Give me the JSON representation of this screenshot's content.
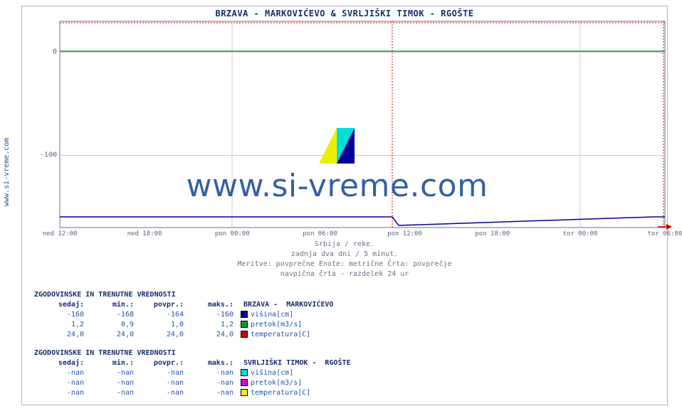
{
  "side_label": "www.si-vreme.com",
  "title": "BRZAVA -  MARKOVIĆEVO &  SVRLJIŠKI TIMOK -  RGOŠTE",
  "watermark_text": "www.si-vreme.com",
  "chart": {
    "type": "line",
    "background_color": "#ffffff",
    "border_color": "#b0b0c0",
    "dashed_border_color": "#dd0000",
    "grid_color": "#cccccc",
    "ylim": [
      -170,
      30
    ],
    "ytick_values": [
      0,
      -100
    ],
    "ytick_labels": [
      "0",
      "-100"
    ],
    "xtick_positions": [
      0,
      0.14,
      0.285,
      0.43,
      0.57,
      0.715,
      0.86,
      1.0
    ],
    "xtick_labels": [
      "ned 12:00",
      "ned 18:00",
      "pon 00:00",
      "pon 06:00",
      "pon 12:00",
      "pon 18:00",
      "tor 00:00",
      "tor 06:00"
    ],
    "divider_24h_x": 0.55,
    "series": [
      {
        "name": "visina_brzava",
        "color": "#000099",
        "data": [
          [
            0,
            -160
          ],
          [
            0.55,
            -160
          ],
          [
            0.56,
            -168
          ],
          [
            0.98,
            -160
          ],
          [
            1.0,
            -160
          ]
        ]
      },
      {
        "name": "pretok_brzava",
        "color": "#009933",
        "data": [
          [
            0,
            1
          ],
          [
            1.0,
            1
          ]
        ]
      },
      {
        "name": "arrow",
        "color": "#cc0000"
      }
    ]
  },
  "caption_lines": [
    "Srbija / reke.",
    "zadnja dva dni / 5 minut.",
    "Meritve: povprečne  Enote: metrične  Črta: povprečje",
    "navpična črta - razdelek 24 ur"
  ],
  "tables": [
    {
      "title": "ZGODOVINSKE IN TRENUTNE VREDNOSTI",
      "station": "BRZAVA -  MARKOVIĆEVO",
      "headers": [
        "sedaj:",
        "min.:",
        "povpr.:",
        "maks.:"
      ],
      "rows": [
        {
          "values": [
            "-160",
            "-168",
            "-164",
            "-160"
          ],
          "swatch": "#000099",
          "label": "višina[cm]"
        },
        {
          "values": [
            "1,2",
            "0,9",
            "1,0",
            "1,2"
          ],
          "swatch": "#009933",
          "label": "pretok[m3/s]"
        },
        {
          "values": [
            "24,0",
            "24,0",
            "24,0",
            "24,0"
          ],
          "swatch": "#cc0000",
          "label": "temperatura[C]"
        }
      ]
    },
    {
      "title": "ZGODOVINSKE IN TRENUTNE VREDNOSTI",
      "station": "SVRLJIŠKI TIMOK -  RGOŠTE",
      "headers": [
        "sedaj:",
        "min.:",
        "povpr.:",
        "maks.:"
      ],
      "rows": [
        {
          "values": [
            "-nan",
            "-nan",
            "-nan",
            "-nan"
          ],
          "swatch": "#00dddd",
          "label": "višina[cm]"
        },
        {
          "values": [
            "-nan",
            "-nan",
            "-nan",
            "-nan"
          ],
          "swatch": "#dd00dd",
          "label": "pretok[m3/s]"
        },
        {
          "values": [
            "-nan",
            "-nan",
            "-nan",
            "-nan"
          ],
          "swatch": "#eeee00",
          "label": "temperatura[C]"
        }
      ]
    }
  ],
  "colors": {
    "title": "#1a2f6b",
    "tick": "#606080",
    "caption": "#707088",
    "value": "#2255aa"
  }
}
